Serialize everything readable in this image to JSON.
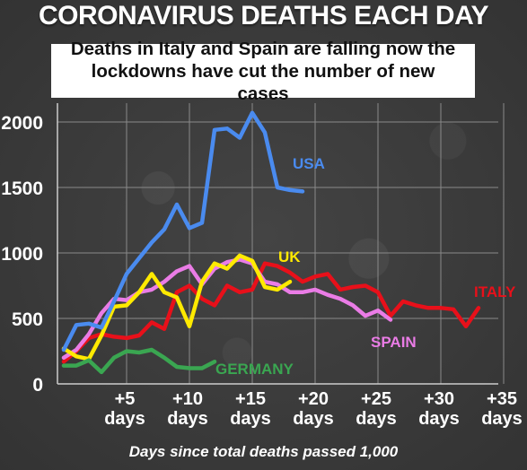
{
  "title": "CORONAVIRUS DEATHS EACH DAY",
  "subtitle": "Deaths in Italy and Spain are falling now the lockdowns have cut the number of new cases",
  "chart_data": {
    "type": "line",
    "xlabel": "Days since total deaths passed 1,000",
    "ylabel": "",
    "xlim": [
      0,
      36
    ],
    "ylim": [
      0,
      2100
    ],
    "grid": true,
    "y_ticks": [
      0,
      500,
      1000,
      1500,
      2000
    ],
    "x_ticks": [
      {
        "value": 5,
        "line1": "+5",
        "line2": "days"
      },
      {
        "value": 10,
        "line1": "+10",
        "line2": "days"
      },
      {
        "value": 15,
        "line1": "+15",
        "line2": "days"
      },
      {
        "value": 20,
        "line1": "+20",
        "line2": "days"
      },
      {
        "value": 25,
        "line1": "+25",
        "line2": "days"
      },
      {
        "value": 30,
        "line1": "+30",
        "line2": "days"
      },
      {
        "value": 35,
        "line1": "+35",
        "line2": "days"
      }
    ],
    "series": [
      {
        "name": "ITALY",
        "color": "#e8101a",
        "x": [
          0,
          1,
          2,
          3,
          4,
          5,
          6,
          7,
          8,
          9,
          10,
          11,
          12,
          13,
          14,
          15,
          16,
          17,
          18,
          19,
          20,
          21,
          22,
          23,
          24,
          25,
          26,
          27,
          28,
          29,
          30,
          31,
          32,
          33
        ],
        "y": [
          170,
          250,
          350,
          380,
          360,
          350,
          370,
          470,
          420,
          700,
          750,
          650,
          600,
          750,
          700,
          720,
          920,
          900,
          850,
          780,
          820,
          840,
          720,
          740,
          750,
          700,
          520,
          630,
          600,
          580,
          580,
          570,
          440,
          580
        ]
      },
      {
        "name": "SPAIN",
        "color": "#ea7ce6",
        "x": [
          0,
          1,
          2,
          3,
          4,
          5,
          6,
          7,
          8,
          9,
          10,
          11,
          12,
          13,
          14,
          15,
          16,
          17,
          18,
          19,
          20,
          21,
          22,
          23,
          24,
          25,
          26
        ],
        "y": [
          200,
          260,
          380,
          540,
          650,
          640,
          700,
          720,
          780,
          860,
          900,
          760,
          880,
          930,
          950,
          920,
          780,
          760,
          700,
          700,
          720,
          680,
          650,
          600,
          520,
          560,
          490
        ]
      },
      {
        "name": "UK",
        "color": "#ffea00",
        "x": [
          0,
          1,
          2,
          3,
          4,
          5,
          6,
          7,
          8,
          9,
          10,
          11,
          12,
          13,
          14,
          15,
          16,
          17,
          18
        ],
        "y": [
          270,
          210,
          190,
          370,
          590,
          600,
          700,
          840,
          700,
          660,
          440,
          780,
          920,
          880,
          980,
          940,
          740,
          720,
          780
        ]
      },
      {
        "name": "USA",
        "color": "#4a8bef",
        "x": [
          0,
          1,
          2,
          3,
          4,
          5,
          6,
          7,
          8,
          9,
          10,
          11,
          12,
          13,
          14,
          15,
          16,
          17,
          18,
          19
        ],
        "y": [
          260,
          450,
          460,
          430,
          630,
          840,
          960,
          1080,
          1180,
          1370,
          1190,
          1230,
          1940,
          1950,
          1880,
          2070,
          1920,
          1500,
          1480,
          1470
        ]
      },
      {
        "name": "GERMANY",
        "color": "#3aa651",
        "x": [
          0,
          1,
          2,
          3,
          4,
          5,
          6,
          7,
          8,
          9,
          10,
          11,
          12
        ],
        "y": [
          140,
          140,
          180,
          90,
          200,
          250,
          240,
          260,
          200,
          130,
          120,
          120,
          170
        ]
      }
    ],
    "labels": [
      {
        "text": "USA",
        "color": "#4a8bef"
      },
      {
        "text": "UK",
        "color": "#ffea00"
      },
      {
        "text": "ITALY",
        "color": "#e8101a"
      },
      {
        "text": "SPAIN",
        "color": "#ea7ce6"
      },
      {
        "text": "GERMANY",
        "color": "#3aa651"
      }
    ]
  }
}
